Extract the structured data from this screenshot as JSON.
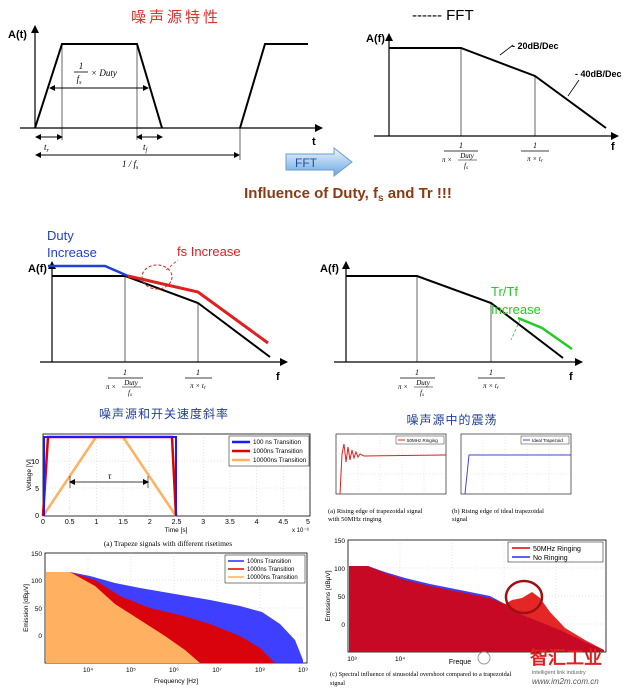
{
  "titles": {
    "noise_source_title": "噪声源特性",
    "fft_title": "------ FFT",
    "fft_arrow_label": "FFT",
    "influence_title_pre": "Influence of Duty, f",
    "influence_title_sub": "s",
    "influence_title_post": " and Tr !!!",
    "caption_slope": "噪声源和开关速度斜率",
    "caption_ringing": "噪声源中的震荡"
  },
  "time_plot": {
    "ylabel": "A(t)",
    "xlabel": "t",
    "duty_num": "1",
    "duty_den": "f",
    "duty_den_sub": "s",
    "duty_mult": "× Duty",
    "tr_label": "t",
    "tr_sub": "r",
    "tf_label": "t",
    "tf_sub": "f",
    "period_label": "1 / f",
    "period_sub": "s"
  },
  "fft_plot": {
    "ylabel": "A(f)",
    "xlabel": "f",
    "slope1": "- 20dB/Dec",
    "slope2": "- 40dB/Dec",
    "c1_num": "1",
    "c1_den_pre": "π ×",
    "c1_duty": "Duty",
    "c1_fs": "f",
    "c1_fs_sub": "s",
    "c2_num": "1",
    "c2_den": "π × t",
    "c2_den_sub": "r"
  },
  "duty_plot": {
    "ylabel": "A(f)",
    "xlabel": "f",
    "duty_label_1": "Duty",
    "duty_label_2": "Increase",
    "fs_label": "fs Increase",
    "c1_num": "1",
    "c1_den_pre": "π ×",
    "c1_duty": "Duty",
    "c1_fs": "f",
    "c1_fs_sub": "s",
    "c2_num": "1",
    "c2_den": "π × t",
    "c2_den_sub": "r",
    "colors": {
      "duty": "#1f3fd6",
      "fs": "#e02020"
    }
  },
  "tr_plot": {
    "ylabel": "A(f)",
    "xlabel": "f",
    "tr_label_1": "Tr/Tf",
    "tr_label_2": "Increase",
    "c1_num": "1",
    "c1_den_pre": "π ×",
    "c1_duty": "Duty",
    "c1_fs": "f",
    "c1_fs_sub": "s",
    "c2_num": "1",
    "c2_den": "π × t",
    "c2_den_sub": "r",
    "colors": {
      "tr": "#22cc22"
    }
  },
  "trapeze_chart": {
    "ylabel": "Voltage [V]",
    "xlabel": "Time [s]",
    "xexp": "x 10⁻⁶",
    "tau": "τ",
    "yticks": [
      "0",
      "5",
      "10"
    ],
    "xticks": [
      "0",
      "0.5",
      "1",
      "1.5",
      "2",
      "2.5",
      "3",
      "3.5",
      "4",
      "4.5",
      "5"
    ],
    "legend": [
      "100 ns Transition",
      "1000ns Transition",
      "10000ns Transition"
    ],
    "caption": "(a) Trapeze signals with different risetimes",
    "colors": [
      "#1a1aff",
      "#e00000",
      "#ffb060"
    ]
  },
  "ringing_a": {
    "legend": "50MHz Ringing",
    "caption_1": "(a) Rising edge of trapezoidal signal",
    "caption_2": "with 50MHz ringing"
  },
  "ringing_b": {
    "legend": "Ideal Trapezoid",
    "caption_1": "(b) Rising edge of ideal trapezoidal",
    "caption_2": "signal"
  },
  "spectrum_left": {
    "ylabel": "Emission [dBμV]",
    "xlabel": "Frequency [Hz]",
    "yticks": [
      "150",
      "100",
      "50",
      "0"
    ],
    "xticks": [
      "10⁴",
      "10⁵",
      "10⁶",
      "10⁷",
      "10⁸",
      "10⁹"
    ],
    "legend": [
      "100ns Transition",
      "1000ns Transition",
      "10000ns Transition"
    ]
  },
  "spectrum_right": {
    "ylabel": "Emissions [dBμV]",
    "xlabel": "Freque",
    "yticks": [
      "150",
      "100",
      "50",
      "0"
    ],
    "xticks": [
      "10³",
      "10⁴"
    ],
    "legend": [
      "50MHz Ringing",
      "No Ringing"
    ],
    "caption_1": "(c) Spectral influence of sinusoidal overshoot compared to a trapezoidal",
    "caption_2": "signal",
    "colors": [
      "#e00000",
      "#2a2aff"
    ]
  },
  "watermark": {
    "logo_text": "智汇工业",
    "sub_text": "intelligent link industry",
    "site_text": "www.im2m.com.cn"
  }
}
